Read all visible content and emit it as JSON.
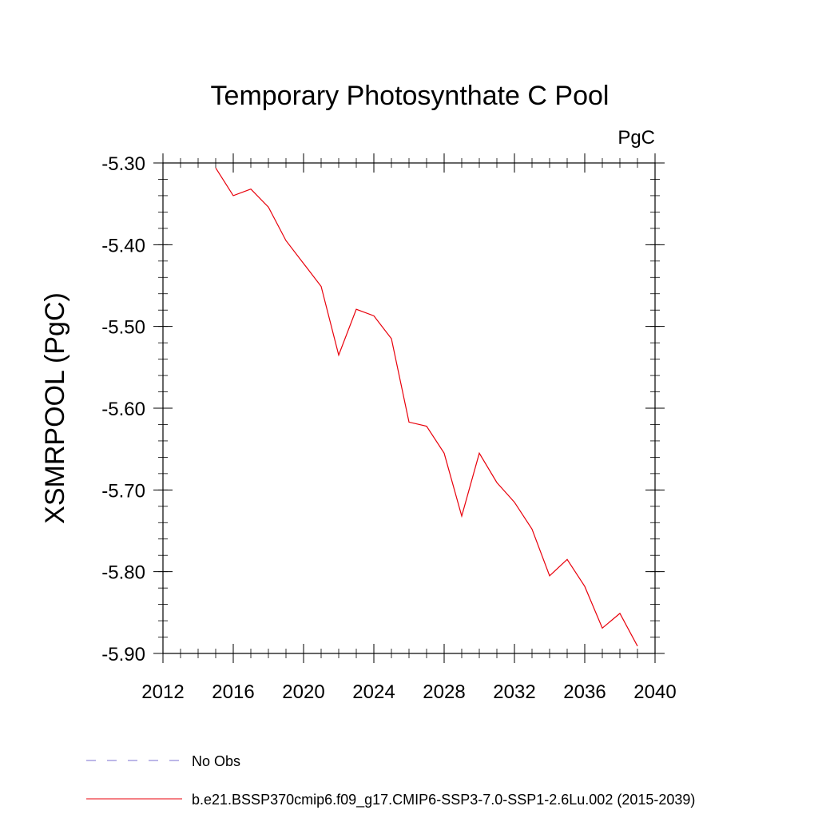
{
  "chart_data": {
    "type": "line",
    "title": "Temporary Photosynthate C Pool",
    "units": "PgC",
    "xlabel": "",
    "ylabel": "XSMRPOOL  (PgC)",
    "xlim": [
      2012,
      2040
    ],
    "ylim": [
      -5.9,
      -5.3
    ],
    "x_ticks": [
      "2012",
      "2016",
      "2020",
      "2024",
      "2028",
      "2032",
      "2036",
      "2040"
    ],
    "y_ticks": [
      "-5.30",
      "-5.40",
      "-5.50",
      "-5.60",
      "-5.70",
      "-5.80",
      "-5.90"
    ],
    "grid": false,
    "legend_position": "bottom-left",
    "series": [
      {
        "name": "b.e21.BSSP370cmip6.f09_g17.CMIP6-SSP3-7.0-SSP1-2.6Lu.002 (2015-2039)",
        "color": "#e8000b",
        "style": "solid",
        "x": [
          2015,
          2016,
          2017,
          2018,
          2019,
          2020,
          2021,
          2022,
          2023,
          2024,
          2025,
          2026,
          2027,
          2028,
          2029,
          2030,
          2031,
          2032,
          2033,
          2034,
          2035,
          2036,
          2037,
          2038,
          2039
        ],
        "y": [
          -5.306,
          -5.34,
          -5.332,
          -5.354,
          -5.395,
          -5.423,
          -5.451,
          -5.535,
          -5.479,
          -5.487,
          -5.515,
          -5.617,
          -5.622,
          -5.655,
          -5.732,
          -5.655,
          -5.691,
          -5.715,
          -5.748,
          -5.805,
          -5.785,
          -5.818,
          -5.869,
          -5.851,
          -5.891
        ]
      }
    ],
    "legend": [
      {
        "label": "No Obs",
        "color": "#7a6fd0",
        "style": "dashed"
      },
      {
        "label": "b.e21.BSSP370cmip6.f09_g17.CMIP6-SSP3-7.0-SSP1-2.6Lu.002 (2015-2039)",
        "color": "#e8000b",
        "style": "solid"
      }
    ]
  }
}
